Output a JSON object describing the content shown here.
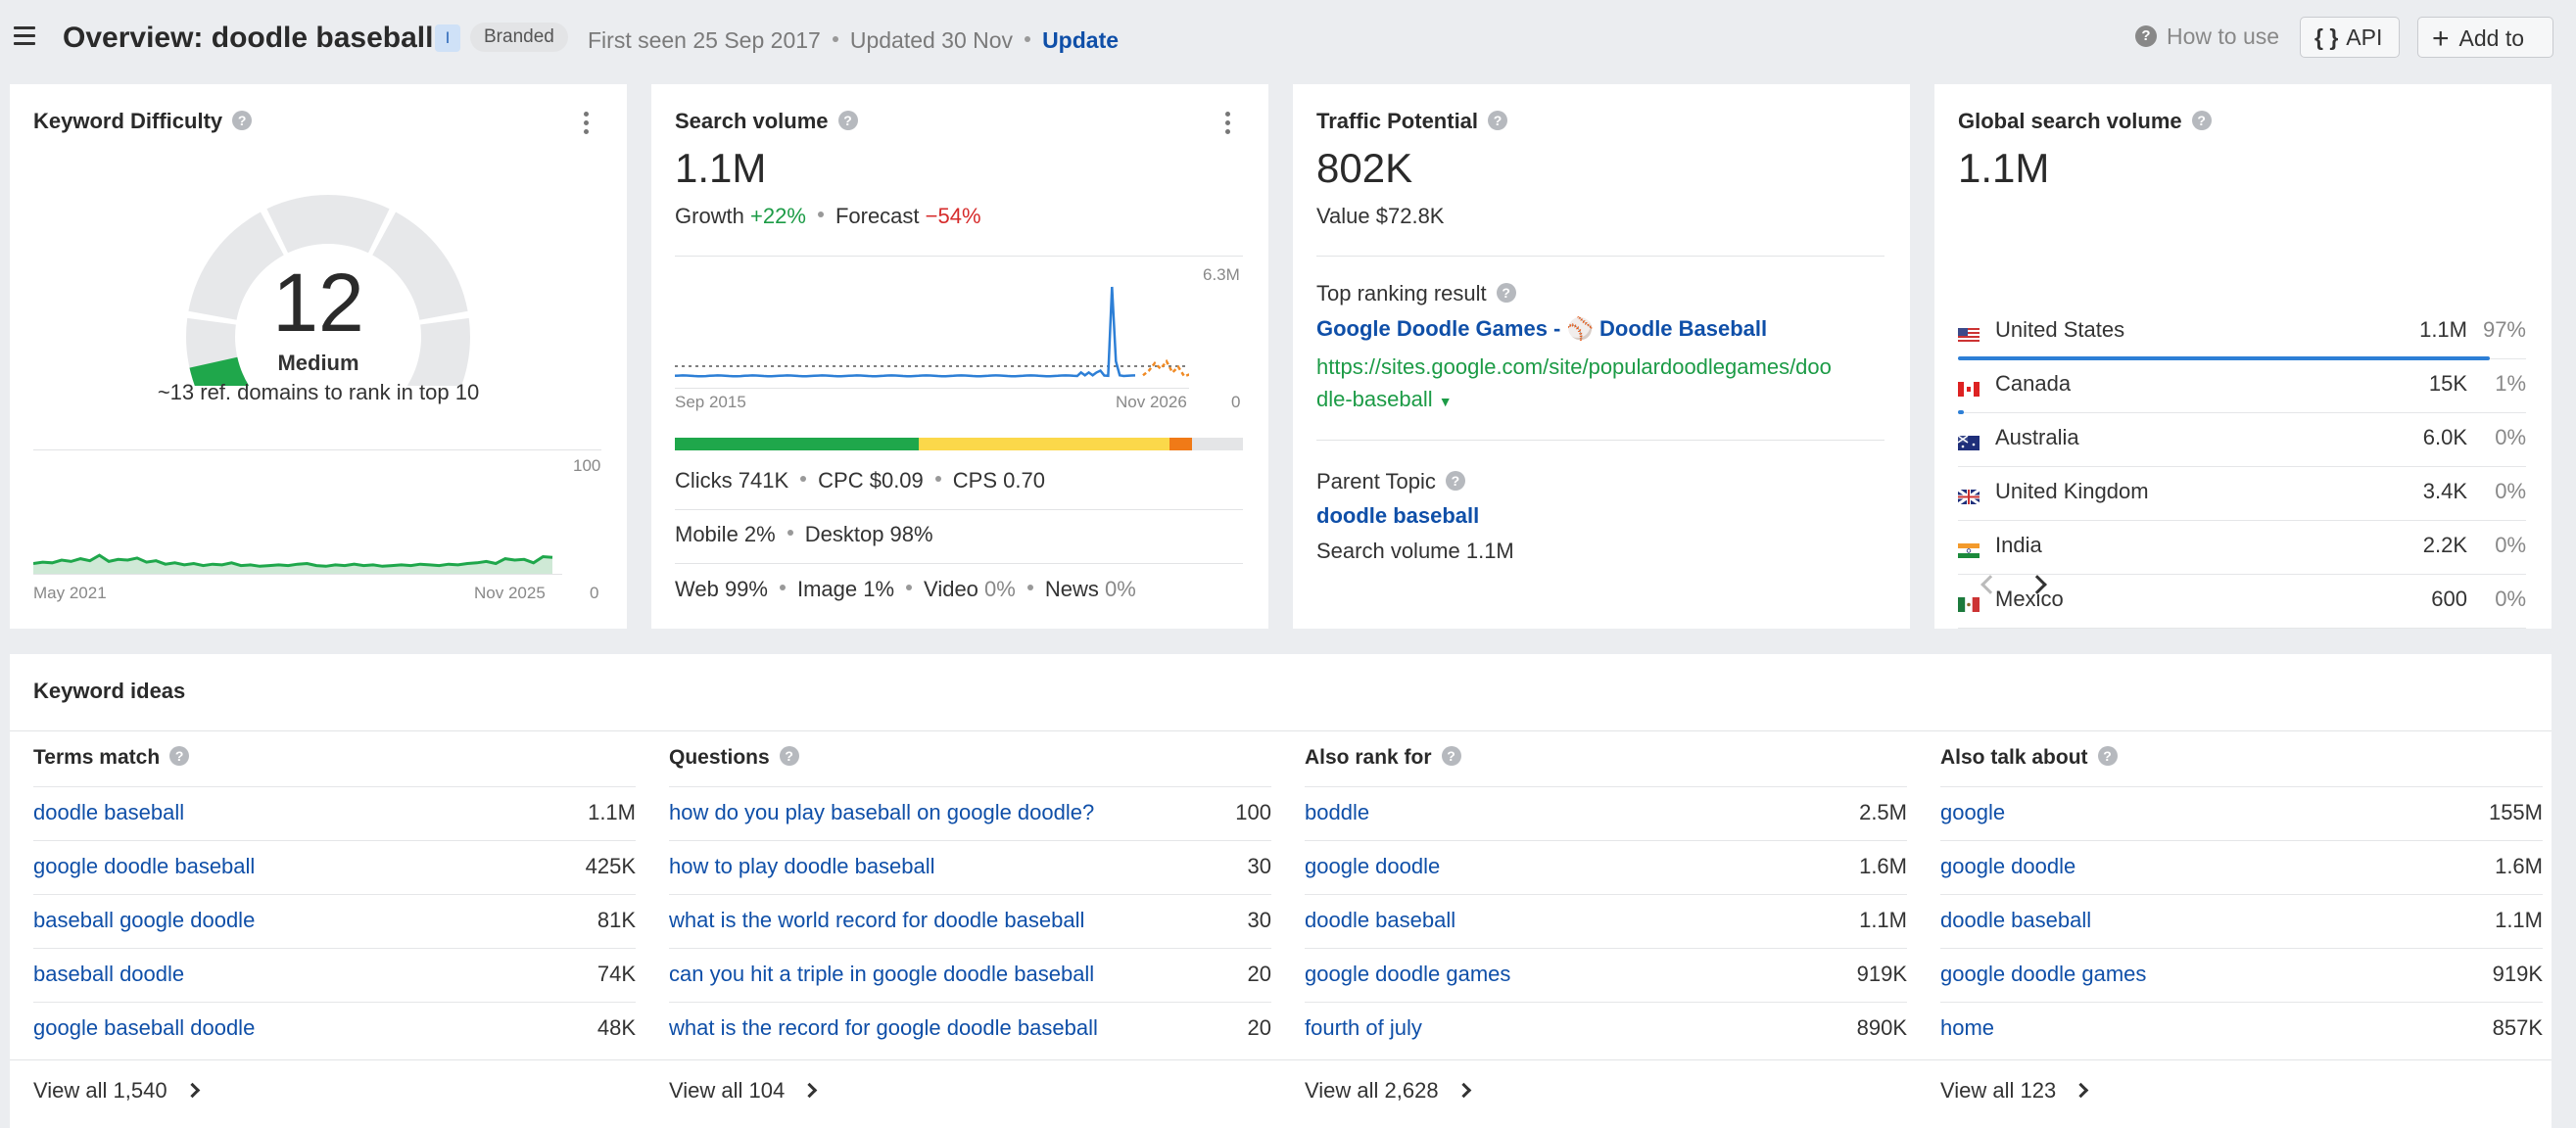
{
  "header": {
    "title": "Overview: doodle baseball",
    "intent_badge": "I",
    "branded_badge": "Branded",
    "first_seen": "First seen 25 Sep 2017",
    "updated": "Updated 30 Nov",
    "update_link": "Update",
    "how_to_use": "How to use",
    "api_label": "API",
    "add_to_label": "Add to"
  },
  "keyword_difficulty": {
    "title": "Keyword Difficulty",
    "score": "12",
    "level": "Medium",
    "description": "~13 ref. domains to rank in top 10",
    "history_max": "100",
    "history_min": "0",
    "history_start": "May 2021",
    "history_end": "Nov 2025"
  },
  "search_volume": {
    "title": "Search volume",
    "value": "1.1M",
    "growth_label": "Growth",
    "growth_value": "+22%",
    "forecast_label": "Forecast",
    "forecast_value": "−54%",
    "chart_max": "6.3M",
    "chart_min": "0",
    "chart_start": "Sep 2015",
    "chart_end": "Nov 2026",
    "clicks": "Clicks 741K",
    "cpc": "CPC $0.09",
    "cps": "CPS 0.70",
    "mobile": "Mobile 2%",
    "desktop": "Desktop 98%",
    "web": "Web 99%",
    "image": "Image 1%",
    "video_label": "Video",
    "video_value": "0%",
    "news_label": "News",
    "news_value": "0%",
    "click_distribution": [
      {
        "share": 0.43,
        "color": "#1fa74b"
      },
      {
        "share": 0.44,
        "color": "#fbd84a"
      },
      {
        "share": 0.04,
        "color": "#f07a17"
      },
      {
        "share": 0.09,
        "color": "#e4e5e7"
      }
    ]
  },
  "traffic_potential": {
    "title": "Traffic Potential",
    "value": "802K",
    "value_text": "Value $72.8K",
    "top_ranking_label": "Top ranking result",
    "top_result_title": "Google Doodle Games - ⚾ Doodle Baseball",
    "top_result_url_line1": "https://sites.google.com/site/populardoodlegames/doo",
    "top_result_url_line2": "dle-baseball",
    "parent_topic_label": "Parent Topic",
    "parent_topic": "doodle baseball",
    "parent_volume": "Search volume 1.1M"
  },
  "global_volume": {
    "title": "Global search volume",
    "value": "1.1M",
    "countries": [
      {
        "name": "United States",
        "volume": "1.1M",
        "pct": "97%",
        "share": 0.97
      },
      {
        "name": "Canada",
        "volume": "15K",
        "pct": "1%",
        "share": 0.01
      },
      {
        "name": "Australia",
        "volume": "6.0K",
        "pct": "0%",
        "share": 0
      },
      {
        "name": "United Kingdom",
        "volume": "3.4K",
        "pct": "0%",
        "share": 0
      },
      {
        "name": "India",
        "volume": "2.2K",
        "pct": "0%",
        "share": 0
      },
      {
        "name": "Mexico",
        "volume": "600",
        "pct": "0%",
        "share": 0
      }
    ]
  },
  "keyword_ideas": {
    "title": "Keyword ideas",
    "columns": [
      {
        "header": "Terms match",
        "view_all": "View all 1,540",
        "rows": [
          {
            "keyword": "doodle baseball",
            "volume": "1.1M"
          },
          {
            "keyword": "google doodle baseball",
            "volume": "425K"
          },
          {
            "keyword": "baseball google doodle",
            "volume": "81K"
          },
          {
            "keyword": "baseball doodle",
            "volume": "74K"
          },
          {
            "keyword": "google baseball doodle",
            "volume": "48K"
          }
        ]
      },
      {
        "header": "Questions",
        "view_all": "View all 104",
        "rows": [
          {
            "keyword": "how do you play baseball on google doodle?",
            "volume": "100"
          },
          {
            "keyword": "how to play doodle baseball",
            "volume": "30"
          },
          {
            "keyword": "what is the world record for doodle baseball",
            "volume": "30"
          },
          {
            "keyword": "can you hit a triple in google doodle baseball",
            "volume": "20"
          },
          {
            "keyword": "what is the record for google doodle baseball",
            "volume": "20"
          }
        ]
      },
      {
        "header": "Also rank for",
        "view_all": "View all 2,628",
        "rows": [
          {
            "keyword": "boddle",
            "volume": "2.5M"
          },
          {
            "keyword": "google doodle",
            "volume": "1.6M"
          },
          {
            "keyword": "doodle baseball",
            "volume": "1.1M"
          },
          {
            "keyword": "google doodle games",
            "volume": "919K"
          },
          {
            "keyword": "fourth of july",
            "volume": "890K"
          }
        ]
      },
      {
        "header": "Also talk about",
        "view_all": "View all 123",
        "rows": [
          {
            "keyword": "google",
            "volume": "155M"
          },
          {
            "keyword": "google doodle",
            "volume": "1.6M"
          },
          {
            "keyword": "doodle baseball",
            "volume": "1.1M"
          },
          {
            "keyword": "google doodle games",
            "volume": "919K"
          },
          {
            "keyword": "home",
            "volume": "857K"
          }
        ]
      }
    ]
  },
  "colors": {
    "link": "#0f4fa8",
    "green": "#1c9b46",
    "red": "#d62b2b",
    "kd_green": "#1fa74b",
    "volume_line": "#2d7fd6",
    "forecast_orange": "#f08a24"
  }
}
